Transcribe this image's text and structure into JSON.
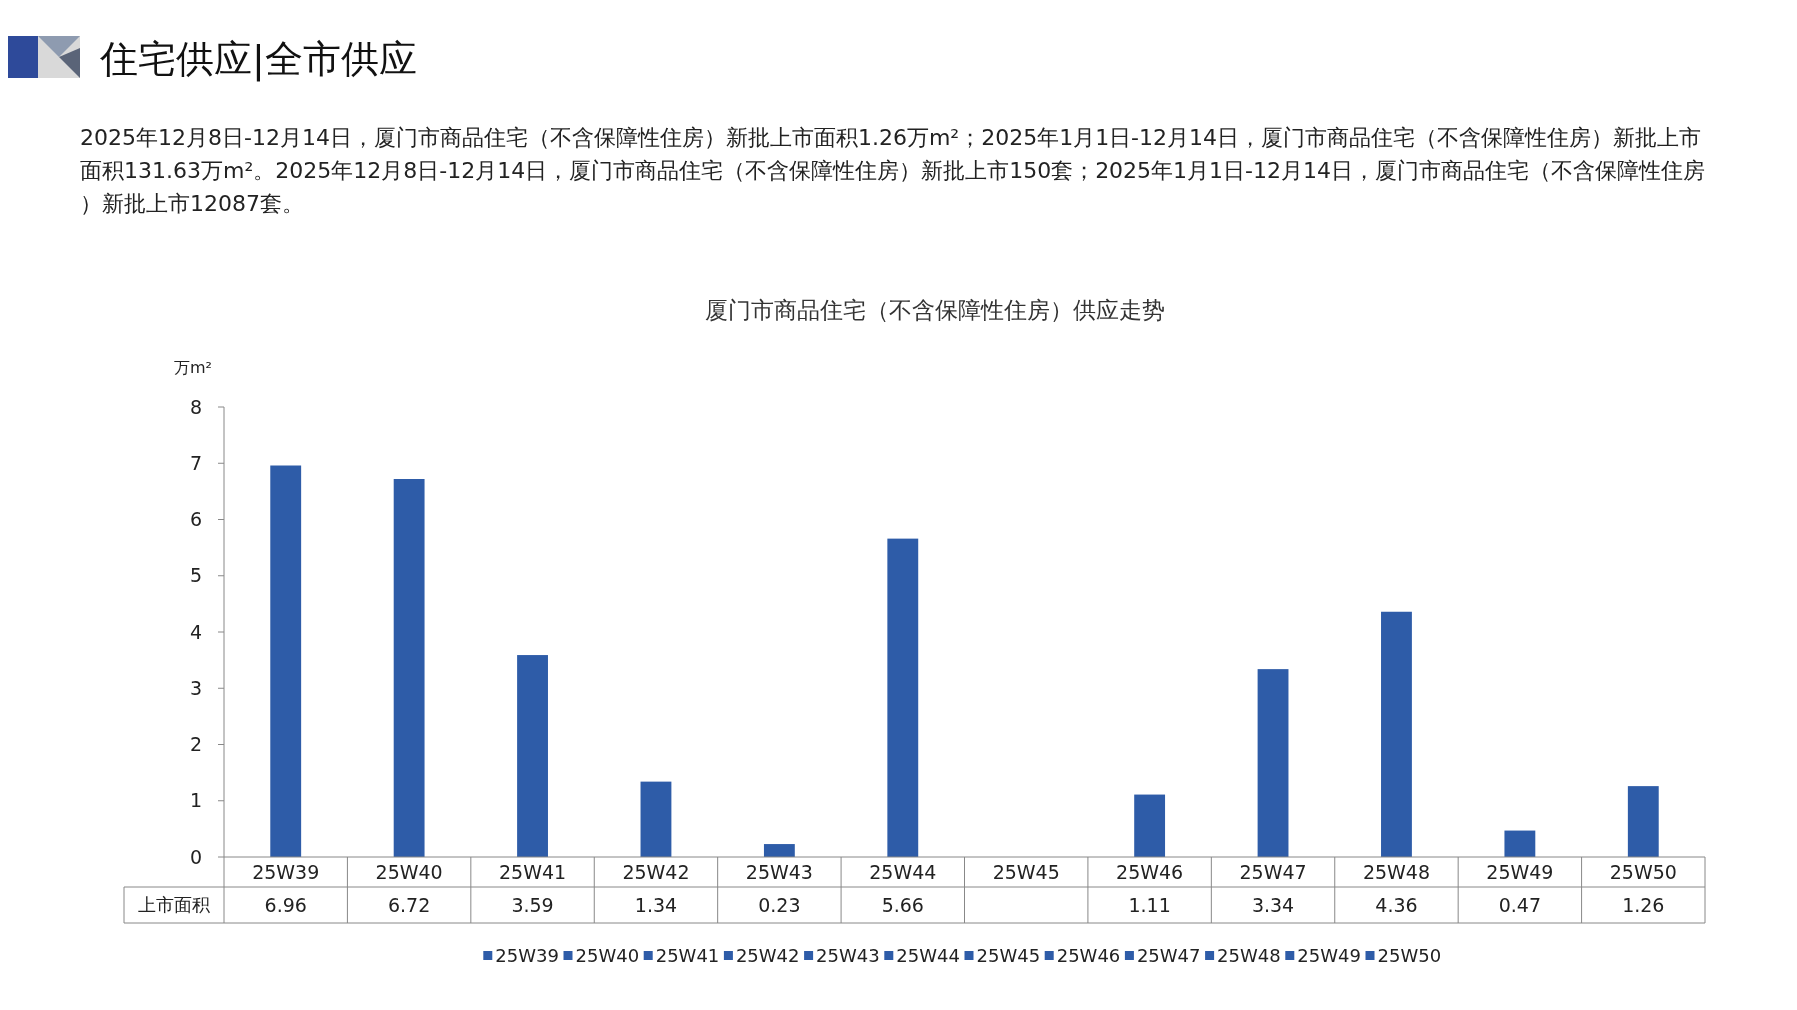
{
  "chart_data": {
    "type": "bar",
    "title": "厦门市商品住宅（不含保障性住房）供应走势",
    "ylabel": "万m²",
    "annotations": [
      "住宅供应|全市供应",
      "2025年12月8日-12月14日，厦门市商品住宅（不含保障性住房）新批上市面积1.26万m²；2025年1月1日-12月14日，厦门市商品住宅（不含保障性住房）新批上市面积131.63万m²。2025年12月8日-12月14日，厦门市商品住宅（不含保障性住房）新批上市150套；2025年1月1日-12月14日，厦门市商品住宅（不含保障性住房）新批上市12087套。"
    ],
    "categories": [
      "25W39",
      "25W40",
      "25W41",
      "25W42",
      "25W43",
      "25W44",
      "25W45",
      "25W46",
      "25W47",
      "25W48",
      "25W49",
      "25W50"
    ],
    "series": [
      {
        "name": "上市面积",
        "color": "#2e5ca8",
        "values": [
          6.96,
          6.72,
          3.59,
          1.34,
          0.23,
          5.66,
          null,
          1.11,
          3.34,
          4.36,
          0.47,
          1.26
        ]
      }
    ],
    "ylim": [
      0,
      8
    ],
    "yticks": [
      0,
      1,
      2,
      3,
      4,
      5,
      6,
      7,
      8
    ],
    "data_labels": true,
    "legend": "bottom",
    "grid": false
  }
}
